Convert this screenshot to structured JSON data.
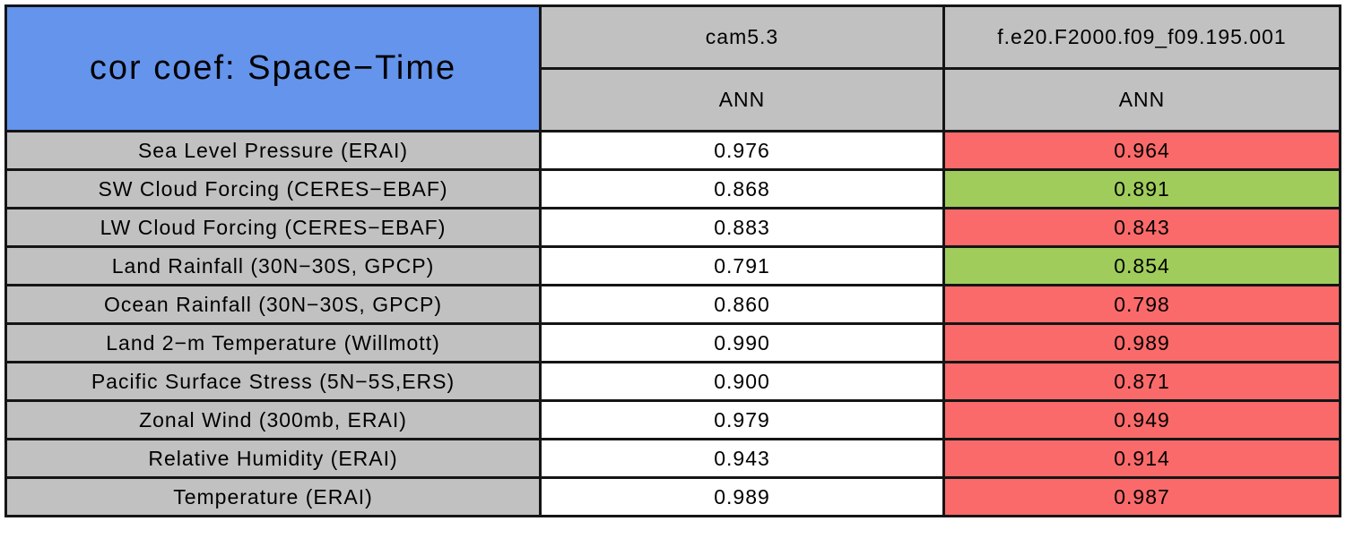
{
  "title": "cor coef: Space−Time",
  "header": {
    "control_model": "cam5.3",
    "test_model": "f.e20.F2000.f09_f09.195.001",
    "control_season": "ANN",
    "test_season": "ANN"
  },
  "rows": [
    {
      "label": "Sea Level Pressure (ERAI)",
      "control": "0.976",
      "test": "0.964",
      "test_status": "worse"
    },
    {
      "label": "SW Cloud Forcing (CERES−EBAF)",
      "control": "0.868",
      "test": "0.891",
      "test_status": "better"
    },
    {
      "label": "LW Cloud Forcing (CERES−EBAF)",
      "control": "0.883",
      "test": "0.843",
      "test_status": "worse"
    },
    {
      "label": "Land Rainfall (30N−30S, GPCP)",
      "control": "0.791",
      "test": "0.854",
      "test_status": "better"
    },
    {
      "label": "Ocean Rainfall (30N−30S, GPCP)",
      "control": "0.860",
      "test": "0.798",
      "test_status": "worse"
    },
    {
      "label": "Land 2−m Temperature (Willmott)",
      "control": "0.990",
      "test": "0.989",
      "test_status": "worse"
    },
    {
      "label": "Pacific Surface Stress (5N−5S,ERS)",
      "control": "0.900",
      "test": "0.871",
      "test_status": "worse"
    },
    {
      "label": "Zonal Wind (300mb, ERAI)",
      "control": "0.979",
      "test": "0.949",
      "test_status": "worse"
    },
    {
      "label": "Relative Humidity (ERAI)",
      "control": "0.943",
      "test": "0.914",
      "test_status": "worse"
    },
    {
      "label": "Temperature (ERAI)",
      "control": "0.989",
      "test": "0.987",
      "test_status": "worse"
    }
  ],
  "colors": {
    "title_bg": "#6494EC",
    "header_bg": "#C1C1C1",
    "control_bg": "#FFFFFF",
    "worse_bg": "#FB6A6A",
    "better_bg": "#A0CC5C",
    "border": "#151515",
    "text": "#000000"
  },
  "chart_data": {
    "type": "table",
    "title": "cor coef: Space−Time",
    "column_headers": [
      "cam5.3 / ANN",
      "f.e20.F2000.f09_f09.195.001 / ANN"
    ],
    "categories": [
      "Sea Level Pressure (ERAI)",
      "SW Cloud Forcing (CERES−EBAF)",
      "LW Cloud Forcing (CERES−EBAF)",
      "Land Rainfall (30N−30S, GPCP)",
      "Ocean Rainfall (30N−30S, GPCP)",
      "Land 2−m Temperature (Willmott)",
      "Pacific Surface Stress (5N−5S,ERS)",
      "Zonal Wind (300mb, ERAI)",
      "Relative Humidity (ERAI)",
      "Temperature (ERAI)"
    ],
    "series": [
      {
        "name": "cam5.3",
        "values": [
          0.976,
          0.868,
          0.883,
          0.791,
          0.86,
          0.99,
          0.9,
          0.979,
          0.943,
          0.989
        ]
      },
      {
        "name": "f.e20.F2000.f09_f09.195.001",
        "values": [
          0.964,
          0.891,
          0.843,
          0.854,
          0.798,
          0.989,
          0.871,
          0.949,
          0.914,
          0.987
        ]
      }
    ],
    "highlight": {
      "better_color": "#A0CC5C",
      "worse_color": "#FB6A6A",
      "test_column_status": [
        "worse",
        "better",
        "worse",
        "better",
        "worse",
        "worse",
        "worse",
        "worse",
        "worse",
        "worse"
      ]
    }
  }
}
